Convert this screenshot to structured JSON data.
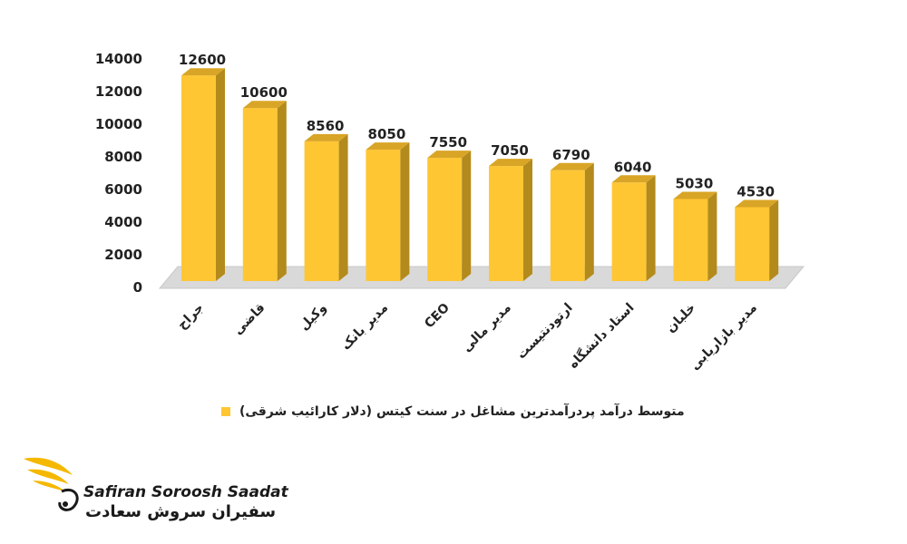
{
  "chart_data": {
    "type": "bar",
    "categories": [
      "جراح",
      "قاضی",
      "وکیل",
      "مدیر بانک",
      "CEO",
      "مدیر مالی",
      "ارتودنتیست",
      "استاد دانشگاه",
      "خلبان",
      "مدیر بازاریابی"
    ],
    "values": [
      12600,
      10600,
      8560,
      8050,
      7550,
      7050,
      6790,
      6040,
      5030,
      4530
    ],
    "data_labels": [
      "12600",
      "10600",
      "8560",
      "8050",
      "7550",
      "7050",
      "6790",
      "6040",
      "5030",
      "4530"
    ],
    "y_ticks": [
      "0",
      "2000",
      "4000",
      "6000",
      "8000",
      "10000",
      "12000",
      "14000"
    ],
    "ylim": [
      0,
      14000
    ],
    "series": [
      {
        "name": "متوسط درآمد پردرآمدترین مشاغل در سنت کیتس (دلار کارائیب شرقی)",
        "values": [
          12600,
          10600,
          8560,
          8050,
          7550,
          7050,
          6790,
          6040,
          5030,
          4530
        ]
      }
    ],
    "legend_position": "bottom",
    "grid": false,
    "style": "3d-bar",
    "colors": {
      "bar_front": "#FFC634",
      "bar_side": "#B38A1C",
      "bar_top": "#D9A526",
      "floor": "#D9D9D9"
    }
  },
  "brand": {
    "latin": "Safiran Soroosh Saadat",
    "persian": "سفیران سروش سعادت",
    "wing_color": "#F5B800"
  }
}
